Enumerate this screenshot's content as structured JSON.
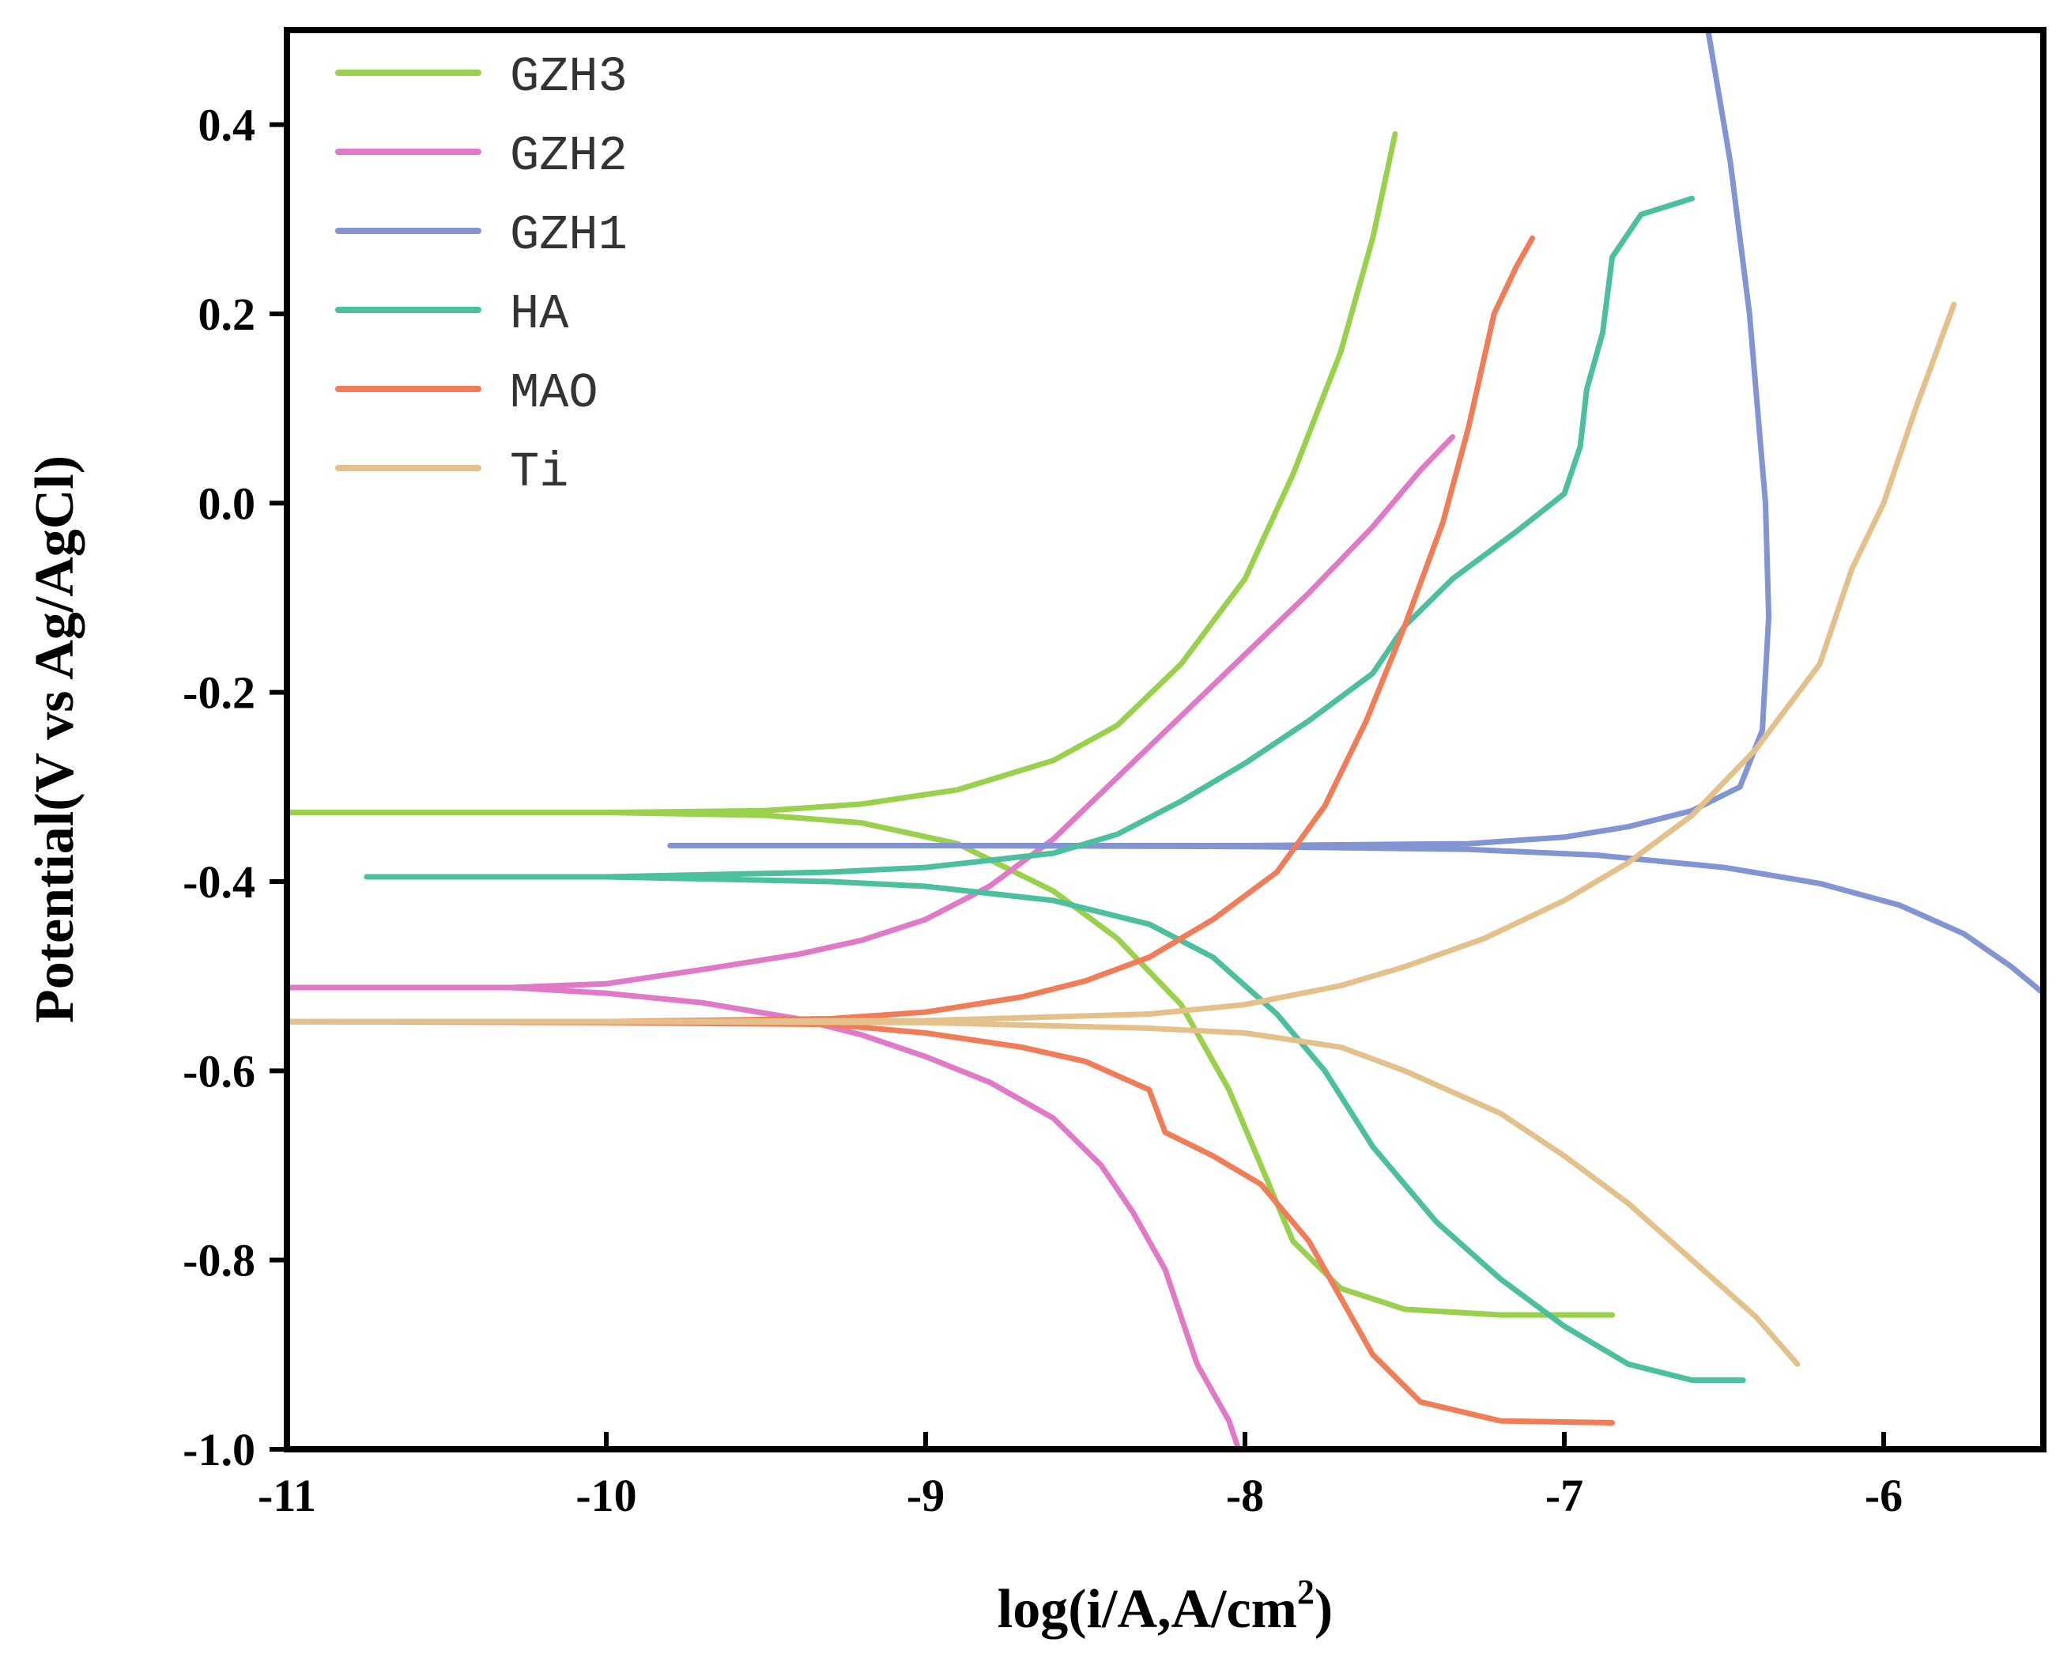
{
  "chart_data": {
    "type": "line",
    "title": "",
    "xlabel": "log(i/A,A/cm",
    "xlabel_sup": "2",
    "xlabel_suffix": ")",
    "ylabel": "Potential(V vs Ag/AgCl)",
    "xlim": [
      -11,
      -5.5
    ],
    "ylim": [
      -1.0,
      0.5
    ],
    "x_ticks": [
      -11,
      -10,
      -9,
      -8,
      -7,
      -6
    ],
    "x_tick_labels": [
      "-11",
      "-10",
      "-9",
      "-8",
      "-7",
      "-6"
    ],
    "y_ticks": [
      -1.0,
      -0.8,
      -0.6,
      -0.4,
      -0.2,
      0.0,
      0.2,
      0.4
    ],
    "y_tick_labels": [
      "-1.0",
      "-0.8",
      "-0.6",
      "-0.4",
      "-0.2",
      "0.0",
      "0.2",
      "0.4"
    ],
    "grid": false,
    "legend_position": "top-left",
    "series": [
      {
        "name": "GZH3",
        "color": "#99d04c",
        "anodic": [
          [
            -11,
            -0.327
          ],
          [
            -10,
            -0.327
          ],
          [
            -9.5,
            -0.325
          ],
          [
            -9.2,
            -0.318
          ],
          [
            -8.9,
            -0.303
          ],
          [
            -8.6,
            -0.272
          ],
          [
            -8.4,
            -0.235
          ],
          [
            -8.2,
            -0.17
          ],
          [
            -8.0,
            -0.08
          ],
          [
            -7.85,
            0.03
          ],
          [
            -7.7,
            0.16
          ],
          [
            -7.6,
            0.28
          ],
          [
            -7.53,
            0.39
          ]
        ],
        "cathodic": [
          [
            -11,
            -0.327
          ],
          [
            -10,
            -0.327
          ],
          [
            -9.5,
            -0.33
          ],
          [
            -9.2,
            -0.338
          ],
          [
            -8.9,
            -0.36
          ],
          [
            -8.6,
            -0.41
          ],
          [
            -8.4,
            -0.46
          ],
          [
            -8.2,
            -0.53
          ],
          [
            -8.05,
            -0.62
          ],
          [
            -7.95,
            -0.7
          ],
          [
            -7.85,
            -0.78
          ],
          [
            -7.7,
            -0.83
          ],
          [
            -7.5,
            -0.852
          ],
          [
            -7.2,
            -0.858
          ],
          [
            -6.85,
            -0.858
          ]
        ]
      },
      {
        "name": "GZH2",
        "color": "#e07ac8",
        "anodic": [
          [
            -11,
            -0.512
          ],
          [
            -10.3,
            -0.512
          ],
          [
            -10.0,
            -0.508
          ],
          [
            -9.7,
            -0.493
          ],
          [
            -9.4,
            -0.477
          ],
          [
            -9.2,
            -0.462
          ],
          [
            -9.0,
            -0.44
          ],
          [
            -8.8,
            -0.405
          ],
          [
            -8.6,
            -0.355
          ],
          [
            -8.4,
            -0.29
          ],
          [
            -8.2,
            -0.225
          ],
          [
            -8.0,
            -0.16
          ],
          [
            -7.8,
            -0.095
          ],
          [
            -7.6,
            -0.025
          ],
          [
            -7.45,
            0.035
          ],
          [
            -7.35,
            0.07
          ]
        ],
        "cathodic": [
          [
            -11,
            -0.512
          ],
          [
            -10.3,
            -0.512
          ],
          [
            -10.0,
            -0.518
          ],
          [
            -9.7,
            -0.528
          ],
          [
            -9.4,
            -0.545
          ],
          [
            -9.2,
            -0.562
          ],
          [
            -9.0,
            -0.585
          ],
          [
            -8.8,
            -0.612
          ],
          [
            -8.6,
            -0.65
          ],
          [
            -8.45,
            -0.7
          ],
          [
            -8.35,
            -0.75
          ],
          [
            -8.25,
            -0.81
          ],
          [
            -8.2,
            -0.86
          ],
          [
            -8.15,
            -0.91
          ],
          [
            -8.05,
            -0.97
          ],
          [
            -8.02,
            -1.0
          ]
        ]
      },
      {
        "name": "GZH1",
        "color": "#8294d2",
        "anodic": [
          [
            -9.8,
            -0.362
          ],
          [
            -9,
            -0.362
          ],
          [
            -8,
            -0.362
          ],
          [
            -7.3,
            -0.36
          ],
          [
            -7.0,
            -0.353
          ],
          [
            -6.8,
            -0.342
          ],
          [
            -6.6,
            -0.325
          ],
          [
            -6.45,
            -0.3
          ],
          [
            -6.38,
            -0.24
          ],
          [
            -6.36,
            -0.12
          ],
          [
            -6.37,
            0.0
          ],
          [
            -6.42,
            0.2
          ],
          [
            -6.48,
            0.36
          ],
          [
            -6.55,
            0.5
          ]
        ],
        "cathodic": [
          [
            -9.8,
            -0.362
          ],
          [
            -9,
            -0.362
          ],
          [
            -8,
            -0.363
          ],
          [
            -7.3,
            -0.366
          ],
          [
            -6.9,
            -0.372
          ],
          [
            -6.5,
            -0.385
          ],
          [
            -6.2,
            -0.402
          ],
          [
            -5.95,
            -0.425
          ],
          [
            -5.75,
            -0.455
          ],
          [
            -5.6,
            -0.49
          ],
          [
            -5.5,
            -0.518
          ]
        ]
      },
      {
        "name": "HA",
        "color": "#4cbf9e",
        "anodic": [
          [
            -10.75,
            -0.395
          ],
          [
            -10,
            -0.395
          ],
          [
            -9.3,
            -0.39
          ],
          [
            -9.0,
            -0.385
          ],
          [
            -8.6,
            -0.37
          ],
          [
            -8.4,
            -0.35
          ],
          [
            -8.2,
            -0.315
          ],
          [
            -8.0,
            -0.275
          ],
          [
            -7.8,
            -0.23
          ],
          [
            -7.6,
            -0.18
          ],
          [
            -7.5,
            -0.13
          ],
          [
            -7.35,
            -0.08
          ],
          [
            -7.15,
            -0.03
          ],
          [
            -7.0,
            0.01
          ],
          [
            -6.95,
            0.06
          ],
          [
            -6.93,
            0.12
          ],
          [
            -6.88,
            0.18
          ],
          [
            -6.85,
            0.26
          ],
          [
            -6.76,
            0.305
          ],
          [
            -6.6,
            0.322
          ]
        ],
        "cathodic": [
          [
            -10.75,
            -0.395
          ],
          [
            -10,
            -0.395
          ],
          [
            -9.3,
            -0.4
          ],
          [
            -9.0,
            -0.405
          ],
          [
            -8.6,
            -0.42
          ],
          [
            -8.3,
            -0.445
          ],
          [
            -8.1,
            -0.48
          ],
          [
            -7.9,
            -0.54
          ],
          [
            -7.75,
            -0.6
          ],
          [
            -7.6,
            -0.68
          ],
          [
            -7.4,
            -0.76
          ],
          [
            -7.2,
            -0.82
          ],
          [
            -7.0,
            -0.87
          ],
          [
            -6.8,
            -0.91
          ],
          [
            -6.6,
            -0.927
          ],
          [
            -6.44,
            -0.927
          ]
        ]
      },
      {
        "name": "MAO",
        "color": "#f07d57",
        "anodic": [
          [
            -11,
            -0.548
          ],
          [
            -10,
            -0.548
          ],
          [
            -9.3,
            -0.545
          ],
          [
            -9.0,
            -0.538
          ],
          [
            -8.7,
            -0.522
          ],
          [
            -8.5,
            -0.505
          ],
          [
            -8.3,
            -0.48
          ],
          [
            -8.1,
            -0.44
          ],
          [
            -7.9,
            -0.39
          ],
          [
            -7.75,
            -0.32
          ],
          [
            -7.62,
            -0.23
          ],
          [
            -7.5,
            -0.13
          ],
          [
            -7.38,
            -0.02
          ],
          [
            -7.3,
            0.08
          ],
          [
            -7.22,
            0.2
          ],
          [
            -7.15,
            0.25
          ],
          [
            -7.1,
            0.28
          ]
        ],
        "cathodic": [
          [
            -11,
            -0.548
          ],
          [
            -10,
            -0.549
          ],
          [
            -9.3,
            -0.551
          ],
          [
            -9.0,
            -0.56
          ],
          [
            -8.7,
            -0.575
          ],
          [
            -8.5,
            -0.59
          ],
          [
            -8.3,
            -0.62
          ],
          [
            -8.25,
            -0.665
          ],
          [
            -8.1,
            -0.69
          ],
          [
            -7.95,
            -0.72
          ],
          [
            -7.8,
            -0.78
          ],
          [
            -7.7,
            -0.84
          ],
          [
            -7.6,
            -0.9
          ],
          [
            -7.45,
            -0.95
          ],
          [
            -7.2,
            -0.97
          ],
          [
            -6.85,
            -0.972
          ]
        ]
      },
      {
        "name": "Ti",
        "color": "#e4c08a",
        "anodic": [
          [
            -11,
            -0.548
          ],
          [
            -10,
            -0.548
          ],
          [
            -9,
            -0.547
          ],
          [
            -8.3,
            -0.54
          ],
          [
            -8.0,
            -0.53
          ],
          [
            -7.7,
            -0.51
          ],
          [
            -7.5,
            -0.49
          ],
          [
            -7.25,
            -0.46
          ],
          [
            -7.0,
            -0.42
          ],
          [
            -6.8,
            -0.38
          ],
          [
            -6.6,
            -0.33
          ],
          [
            -6.4,
            -0.26
          ],
          [
            -6.2,
            -0.17
          ],
          [
            -6.1,
            -0.07
          ],
          [
            -6.0,
            0.0
          ],
          [
            -5.9,
            0.1
          ],
          [
            -5.78,
            0.21
          ]
        ],
        "cathodic": [
          [
            -11,
            -0.548
          ],
          [
            -10,
            -0.548
          ],
          [
            -9,
            -0.549
          ],
          [
            -8.3,
            -0.555
          ],
          [
            -8.0,
            -0.56
          ],
          [
            -7.7,
            -0.575
          ],
          [
            -7.5,
            -0.6
          ],
          [
            -7.2,
            -0.645
          ],
          [
            -7.0,
            -0.69
          ],
          [
            -6.8,
            -0.74
          ],
          [
            -6.6,
            -0.8
          ],
          [
            -6.4,
            -0.86
          ],
          [
            -6.27,
            -0.91
          ]
        ]
      }
    ]
  }
}
